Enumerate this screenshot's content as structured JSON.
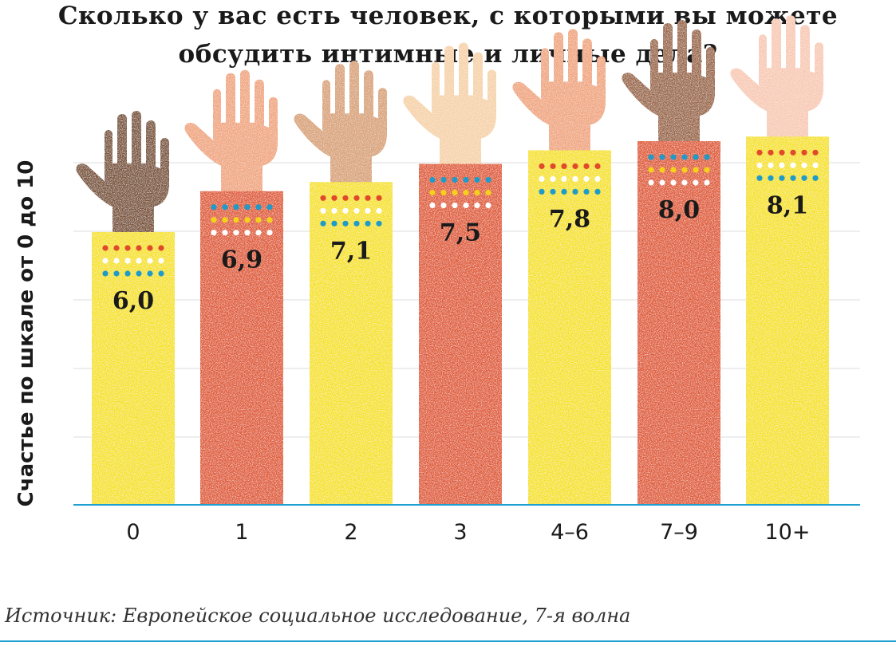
{
  "title_line1": "Сколько у вас есть человек, с которыми вы можете",
  "title_line2": "обсудить интимные и личные дела?",
  "source": "Источник: Европейское социальное исследование, 7-я волна",
  "colors": {
    "yellow": "#f6e21e",
    "orange": "#e05a30",
    "axis": "#1ea0d2",
    "grid": "#dcdcdc",
    "dot_blue": "#1e9bc8",
    "dot_red": "#e04a2a",
    "dot_yellow": "#f4d21a"
  },
  "chart_data": {
    "type": "bar",
    "title": "Сколько у вас есть человек, с которыми вы можете обсудить интимные и личные дела?",
    "xlabel": "",
    "ylabel": "Счастье по шкале от 0 до 10",
    "categories": [
      "0",
      "1",
      "2",
      "3",
      "4–6",
      "7–9",
      "10+"
    ],
    "values": [
      6.0,
      6.9,
      7.1,
      7.5,
      7.8,
      8.0,
      8.1
    ],
    "value_labels": [
      "6,0",
      "6,9",
      "7,1",
      "7,5",
      "7,8",
      "8,0",
      "8,1"
    ],
    "bar_colors": [
      "yellow",
      "orange",
      "yellow",
      "orange",
      "yellow",
      "orange",
      "yellow"
    ],
    "hand_colors": [
      "#7a5136",
      "#f0a57e",
      "#d9a277",
      "#f6d2a8",
      "#f0a57e",
      "#9b6644",
      "#f8c9b4"
    ],
    "ylim": [
      0,
      9
    ],
    "grid": true,
    "legend": "none"
  }
}
